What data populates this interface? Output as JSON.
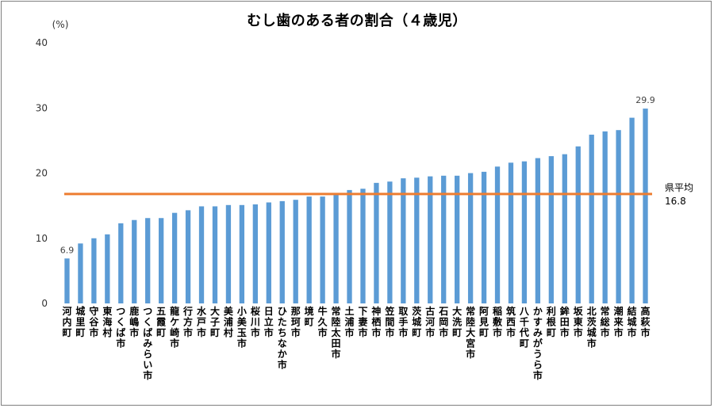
{
  "chart_data": {
    "type": "bar",
    "title": "むし歯のある者の割合（４歳児）",
    "ylabel": "(%)",
    "ylim": [
      0,
      40
    ],
    "yticks": [
      0,
      10,
      20,
      30,
      40
    ],
    "grid": false,
    "categories": [
      "河内町",
      "城里町",
      "守谷市",
      "東海村",
      "つくば市",
      "鹿嶋市",
      "つくばみらい市",
      "五霞町",
      "龍ケ崎市",
      "行方市",
      "水戸市",
      "大子町",
      "美浦村",
      "小美玉市",
      "桜川市",
      "日立市",
      "ひたちなか市",
      "那珂市",
      "境町",
      "牛久市",
      "常陸太田市",
      "土浦市",
      "下妻市",
      "神栖市",
      "笠間市",
      "取手市",
      "茨城町",
      "古河市",
      "石岡市",
      "大洗町",
      "常陸大宮市",
      "阿見町",
      "稲敷市",
      "筑西市",
      "八千代町",
      "かすみがうら市",
      "利根町",
      "鉾田市",
      "坂東市",
      "北茨城市",
      "常総市",
      "潮来市",
      "結城市",
      "高萩市"
    ],
    "values": [
      6.9,
      9.2,
      10.0,
      10.6,
      12.3,
      12.8,
      13.1,
      13.1,
      13.9,
      14.3,
      14.9,
      14.9,
      15.1,
      15.1,
      15.2,
      15.5,
      15.7,
      15.9,
      16.4,
      16.4,
      16.8,
      17.4,
      17.6,
      18.5,
      18.7,
      19.2,
      19.3,
      19.5,
      19.6,
      19.6,
      20.0,
      20.2,
      21.0,
      21.6,
      21.8,
      22.3,
      22.6,
      22.9,
      24.1,
      25.9,
      26.4,
      26.6,
      28.5,
      29.9
    ],
    "data_labels": [
      {
        "index": 0,
        "text": "6.9"
      },
      {
        "index": 43,
        "text": "29.9"
      }
    ],
    "bar_color": "#5b9bd5",
    "reference_line": {
      "value": 16.8,
      "label": "県平均",
      "value_text": "16.8",
      "color": "#ed7d31"
    }
  }
}
